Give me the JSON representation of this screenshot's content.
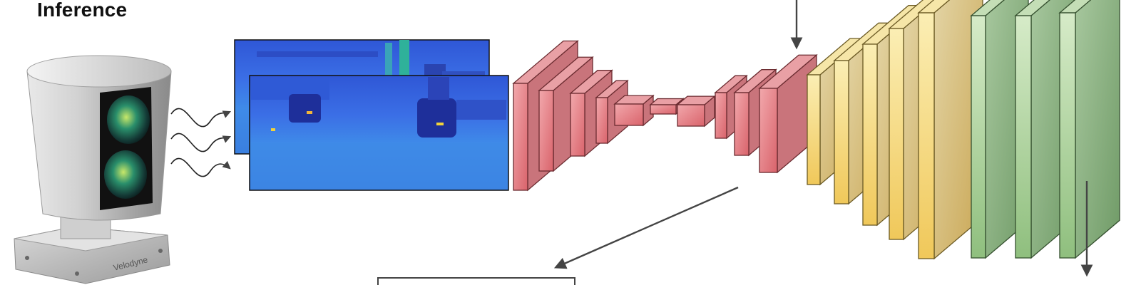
{
  "title": "Inference",
  "sensor": {
    "brand_text": "Velodyne",
    "body_color": "#bdbdbd",
    "lens_color": "#1f7a5a"
  },
  "range_images": {
    "count": 2,
    "palette": [
      "#2a3fc8",
      "#3c6ee8",
      "#2fa8c8",
      "#5fd08a",
      "#f2d23a"
    ]
  },
  "network": {
    "encoder_color": "#e88a8f",
    "decoder_yellow_color": "#f3d77a",
    "decoder_green_color": "#9fc98f",
    "encoder_block_count": 8,
    "decoder_yellow_count": 5,
    "decoder_green_count": 3
  },
  "arrows": {
    "color": "#444444"
  }
}
